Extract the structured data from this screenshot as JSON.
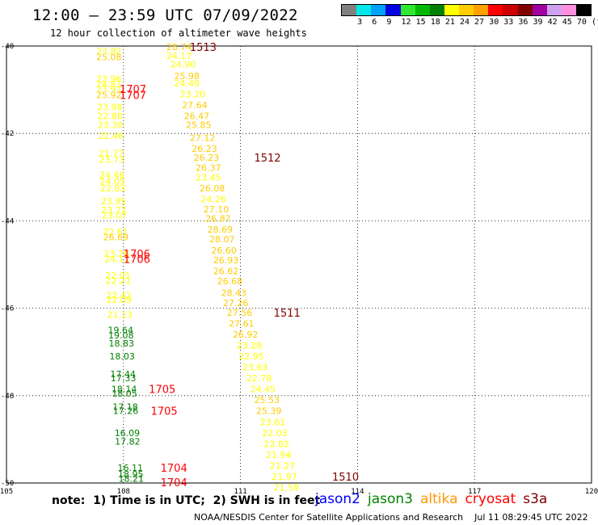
{
  "title": "12:00 – 23:59 UTC 07/09/2022",
  "subtitle": "12 hour collection of altimeter wave heights",
  "legend": {
    "colors": [
      "#808080",
      "#00e8e8",
      "#00a0ff",
      "#0000e0",
      "#30e830",
      "#00b800",
      "#008000",
      "#ffff00",
      "#ffcc00",
      "#ffa000",
      "#ff0000",
      "#cc0000",
      "#800000",
      "#a000a0",
      "#d0a0f0",
      "#ff90e0",
      "#000000"
    ],
    "labels": [
      "3",
      "6",
      "9",
      "12",
      "15",
      "18",
      "21",
      "24",
      "27",
      "30",
      "33",
      "36",
      "39",
      "42",
      "45",
      "70",
      "(ft)"
    ]
  },
  "note": "note:  1) Time is in UTC;  2) SWH is in feet",
  "satellites": [
    {
      "name": "jason2",
      "color": "#0000ff"
    },
    {
      "name": "jason3",
      "color": "#008000"
    },
    {
      "name": "altika",
      "color": "#ff9900"
    },
    {
      "name": "cryosat",
      "color": "#ff0000"
    },
    {
      "name": "s3a",
      "color": "#800000"
    }
  ],
  "credit": {
    "org": "NOAA/NESDIS Center for Satellite Applications and Research",
    "time": "Jul 11 08:29:45 UTC 2022"
  },
  "chart_data": {
    "type": "scatter",
    "title": "12:00 – 23:59 UTC 07/09/2022",
    "subtitle": "12 hour collection of altimeter wave heights",
    "xlim": [
      105,
      120
    ],
    "ylim": [
      -50,
      -40
    ],
    "x_ticks": [
      105,
      108,
      111,
      114,
      117,
      120
    ],
    "y_ticks": [
      -40,
      -42,
      -44,
      -46,
      -48,
      -50
    ],
    "x_tick_labels": [
      "105",
      "108",
      "111",
      "114",
      "117",
      "120"
    ],
    "y_tick_labels": [
      "-40",
      "-42",
      "-44",
      "-46",
      "-48",
      "-50"
    ],
    "grid": true,
    "units": "ft",
    "series": [
      {
        "name": "s3a",
        "color": "#800000",
        "points": [
          {
            "lon": 107.3,
            "lat": -40.12,
            "v": 23.82,
            "c": "#ffff00"
          },
          {
            "lon": 107.3,
            "lat": -40.25,
            "v": 25.08,
            "c": "#ffcc00"
          },
          {
            "lon": 107.3,
            "lat": -40.75,
            "v": 23.96,
            "c": "#ffff00"
          },
          {
            "lon": 107.3,
            "lat": -40.87,
            "v": 24.81,
            "c": "#ffff00"
          },
          {
            "lon": 107.3,
            "lat": -40.99,
            "v": 23.91,
            "c": "#ffff00"
          },
          {
            "lon": 107.3,
            "lat": -41.12,
            "v": 25.92,
            "c": "#ffcc00"
          },
          {
            "lon": 107.32,
            "lat": -41.4,
            "v": 23.98,
            "c": "#ffff00"
          },
          {
            "lon": 107.33,
            "lat": -41.6,
            "v": 22.8,
            "c": "#ffff00"
          },
          {
            "lon": 107.34,
            "lat": -41.8,
            "v": 23.3,
            "c": "#ffff00"
          },
          {
            "lon": 107.35,
            "lat": -42.05,
            "v": 22.46,
            "c": "#ffff00"
          },
          {
            "lon": 107.36,
            "lat": -42.45,
            "v": 21.77,
            "c": "#ffff00"
          },
          {
            "lon": 107.37,
            "lat": -42.6,
            "v": 23.73,
            "c": "#ffff00"
          },
          {
            "lon": 107.38,
            "lat": -42.95,
            "v": 24.46,
            "c": "#ffff00"
          },
          {
            "lon": 107.39,
            "lat": -43.1,
            "v": 24.05,
            "c": "#ffff00"
          },
          {
            "lon": 107.4,
            "lat": -43.25,
            "v": 22.83,
            "c": "#ffff00"
          },
          {
            "lon": 107.42,
            "lat": -43.55,
            "v": 23.95,
            "c": "#ffff00"
          },
          {
            "lon": 107.43,
            "lat": -43.75,
            "v": 23.72,
            "c": "#ffff00"
          },
          {
            "lon": 107.44,
            "lat": -43.87,
            "v": 23.07,
            "c": "#ffff00"
          },
          {
            "lon": 107.47,
            "lat": -44.25,
            "v": 22.61,
            "c": "#ffff00"
          },
          {
            "lon": 107.48,
            "lat": -44.37,
            "v": 26.69,
            "c": "#ffcc00"
          },
          {
            "lon": 107.5,
            "lat": -44.75,
            "v": 23.26,
            "c": "#ffff00"
          },
          {
            "lon": 107.51,
            "lat": -44.87,
            "v": 24.11,
            "c": "#ffff00"
          },
          {
            "lon": 107.53,
            "lat": -45.25,
            "v": 22.01,
            "c": "#ffff00"
          },
          {
            "lon": 107.54,
            "lat": -45.37,
            "v": 22.21,
            "c": "#ffff00"
          },
          {
            "lon": 107.55,
            "lat": -45.7,
            "v": 22.42,
            "c": "#ffff00"
          },
          {
            "lon": 107.56,
            "lat": -45.8,
            "v": 22.09,
            "c": "#ffff00"
          },
          {
            "lon": 107.58,
            "lat": -46.15,
            "v": 21.13,
            "c": "#ffff00"
          },
          {
            "lon": 107.6,
            "lat": -46.5,
            "v": 19.64,
            "c": "#008000"
          },
          {
            "lon": 107.61,
            "lat": -46.62,
            "v": 19.08,
            "c": "#008000"
          },
          {
            "lon": 107.62,
            "lat": -46.8,
            "v": 18.83,
            "c": "#008000"
          },
          {
            "lon": 107.64,
            "lat": -47.1,
            "v": 18.03,
            "c": "#008000"
          },
          {
            "lon": 107.66,
            "lat": -47.5,
            "v": 17.44,
            "c": "#008000"
          },
          {
            "lon": 107.67,
            "lat": -47.6,
            "v": 17.33,
            "c": "#008000"
          },
          {
            "lon": 107.69,
            "lat": -47.85,
            "v": 18.14,
            "c": "#008000"
          },
          {
            "lon": 107.7,
            "lat": -47.95,
            "v": 18.05,
            "c": "#008000"
          },
          {
            "lon": 107.72,
            "lat": -48.25,
            "v": 17.18,
            "c": "#008000"
          },
          {
            "lon": 107.73,
            "lat": -48.35,
            "v": 17.26,
            "c": "#008000"
          },
          {
            "lon": 107.77,
            "lat": -48.85,
            "v": 16.09,
            "c": "#008000"
          },
          {
            "lon": 107.78,
            "lat": -49.05,
            "v": 17.82,
            "c": "#008000"
          },
          {
            "lon": 107.85,
            "lat": -49.65,
            "v": 16.11,
            "c": "#008000"
          },
          {
            "lon": 107.86,
            "lat": -49.8,
            "v": 18.95,
            "c": "#008000"
          },
          {
            "lon": 107.87,
            "lat": -49.9,
            "v": 18.21,
            "c": "#008000"
          },
          {
            "lon": 109.1,
            "lat": -40.02,
            "v": 28.74,
            "c": "#ffcc00"
          },
          {
            "lon": 109.1,
            "lat": -40.22,
            "v": 24.17,
            "c": "#ffff00"
          },
          {
            "lon": 109.2,
            "lat": -40.42,
            "v": 24.9,
            "c": "#ffff00"
          },
          {
            "lon": 109.3,
            "lat": -40.68,
            "v": 25.98,
            "c": "#ffcc00"
          },
          {
            "lon": 109.3,
            "lat": -40.85,
            "v": 24.49,
            "c": "#ffff00"
          },
          {
            "lon": 109.45,
            "lat": -41.1,
            "v": 23.2,
            "c": "#ffff00"
          },
          {
            "lon": 109.5,
            "lat": -41.35,
            "v": 27.64,
            "c": "#ffcc00"
          },
          {
            "lon": 109.55,
            "lat": -41.6,
            "v": 26.47,
            "c": "#ffcc00"
          },
          {
            "lon": 109.6,
            "lat": -41.8,
            "v": 25.85,
            "c": "#ffcc00"
          },
          {
            "lon": 109.7,
            "lat": -42.1,
            "v": 27.12,
            "c": "#ffcc00"
          },
          {
            "lon": 109.75,
            "lat": -42.35,
            "v": 26.23,
            "c": "#ffcc00"
          },
          {
            "lon": 109.8,
            "lat": -42.55,
            "v": 26.23,
            "c": "#ffcc00"
          },
          {
            "lon": 109.85,
            "lat": -42.78,
            "v": 26.37,
            "c": "#ffcc00"
          },
          {
            "lon": 109.85,
            "lat": -43.0,
            "v": 23.45,
            "c": "#ffff00"
          },
          {
            "lon": 109.95,
            "lat": -43.25,
            "v": 26.08,
            "c": "#ffcc00"
          },
          {
            "lon": 109.98,
            "lat": -43.5,
            "v": 24.26,
            "c": "#ffff00"
          },
          {
            "lon": 110.05,
            "lat": -43.73,
            "v": 27.1,
            "c": "#ffcc00"
          },
          {
            "lon": 110.1,
            "lat": -43.95,
            "v": 26.87,
            "c": "#ffcc00"
          },
          {
            "lon": 110.15,
            "lat": -44.2,
            "v": 28.69,
            "c": "#ffcc00"
          },
          {
            "lon": 110.2,
            "lat": -44.42,
            "v": 28.07,
            "c": "#ffcc00"
          },
          {
            "lon": 110.25,
            "lat": -44.68,
            "v": 26.6,
            "c": "#ffcc00"
          },
          {
            "lon": 110.3,
            "lat": -44.9,
            "v": 26.93,
            "c": "#ffcc00"
          },
          {
            "lon": 110.3,
            "lat": -45.15,
            "v": 26.62,
            "c": "#ffcc00"
          },
          {
            "lon": 110.4,
            "lat": -45.38,
            "v": 26.68,
            "c": "#ffcc00"
          },
          {
            "lon": 110.5,
            "lat": -45.65,
            "v": 28.43,
            "c": "#ffcc00"
          },
          {
            "lon": 110.55,
            "lat": -45.88,
            "v": 27.26,
            "c": "#ffcc00"
          },
          {
            "lon": 110.65,
            "lat": -46.1,
            "v": 27.56,
            "c": "#ffcc00"
          },
          {
            "lon": 110.7,
            "lat": -46.35,
            "v": 27.61,
            "c": "#ffcc00"
          },
          {
            "lon": 110.8,
            "lat": -46.6,
            "v": 26.92,
            "c": "#ffcc00"
          },
          {
            "lon": 110.9,
            "lat": -46.85,
            "v": 23.28,
            "c": "#ffff00"
          },
          {
            "lon": 110.95,
            "lat": -47.1,
            "v": 22.95,
            "c": "#ffff00"
          },
          {
            "lon": 111.05,
            "lat": -47.35,
            "v": 23.63,
            "c": "#ffff00"
          },
          {
            "lon": 111.15,
            "lat": -47.6,
            "v": 22.78,
            "c": "#ffff00"
          },
          {
            "lon": 111.25,
            "lat": -47.85,
            "v": 24.45,
            "c": "#ffff00"
          },
          {
            "lon": 111.35,
            "lat": -48.1,
            "v": 25.53,
            "c": "#ffcc00"
          },
          {
            "lon": 111.4,
            "lat": -48.35,
            "v": 25.39,
            "c": "#ffcc00"
          },
          {
            "lon": 111.5,
            "lat": -48.6,
            "v": 23.61,
            "c": "#ffff00"
          },
          {
            "lon": 111.55,
            "lat": -48.85,
            "v": 22.03,
            "c": "#ffff00"
          },
          {
            "lon": 111.6,
            "lat": -49.1,
            "v": 22.82,
            "c": "#ffff00"
          },
          {
            "lon": 111.65,
            "lat": -49.35,
            "v": 21.94,
            "c": "#ffff00"
          },
          {
            "lon": 111.75,
            "lat": -49.6,
            "v": 21.27,
            "c": "#ffff00"
          },
          {
            "lon": 111.8,
            "lat": -49.85,
            "v": 21.97,
            "c": "#ffff00"
          },
          {
            "lon": 111.85,
            "lat": -50.1,
            "v": 21.59,
            "c": "#ffff00"
          }
        ]
      }
    ],
    "time_labels": [
      {
        "text": "1513",
        "lon": 109.7,
        "lat": -40.02,
        "color": "#800000"
      },
      {
        "text": "1707",
        "lon": 107.9,
        "lat": -40.98,
        "color": "#ff0000"
      },
      {
        "text": "1707",
        "lon": 107.9,
        "lat": -41.12,
        "color": "#ff0000"
      },
      {
        "text": "1512",
        "lon": 111.35,
        "lat": -42.55,
        "color": "#800000"
      },
      {
        "text": "1706",
        "lon": 108.0,
        "lat": -44.75,
        "color": "#ff0000"
      },
      {
        "text": "1706",
        "lon": 108.0,
        "lat": -44.87,
        "color": "#ff0000"
      },
      {
        "text": "1511",
        "lon": 111.85,
        "lat": -46.1,
        "color": "#800000"
      },
      {
        "text": "1705",
        "lon": 108.65,
        "lat": -47.85,
        "color": "#ff0000"
      },
      {
        "text": "1705",
        "lon": 108.7,
        "lat": -48.35,
        "color": "#ff0000"
      },
      {
        "text": "1704",
        "lon": 108.95,
        "lat": -49.65,
        "color": "#ff0000"
      },
      {
        "text": "1704",
        "lon": 108.95,
        "lat": -49.98,
        "color": "#ff0000"
      },
      {
        "text": "1510",
        "lon": 113.35,
        "lat": -49.85,
        "color": "#800000"
      }
    ]
  }
}
